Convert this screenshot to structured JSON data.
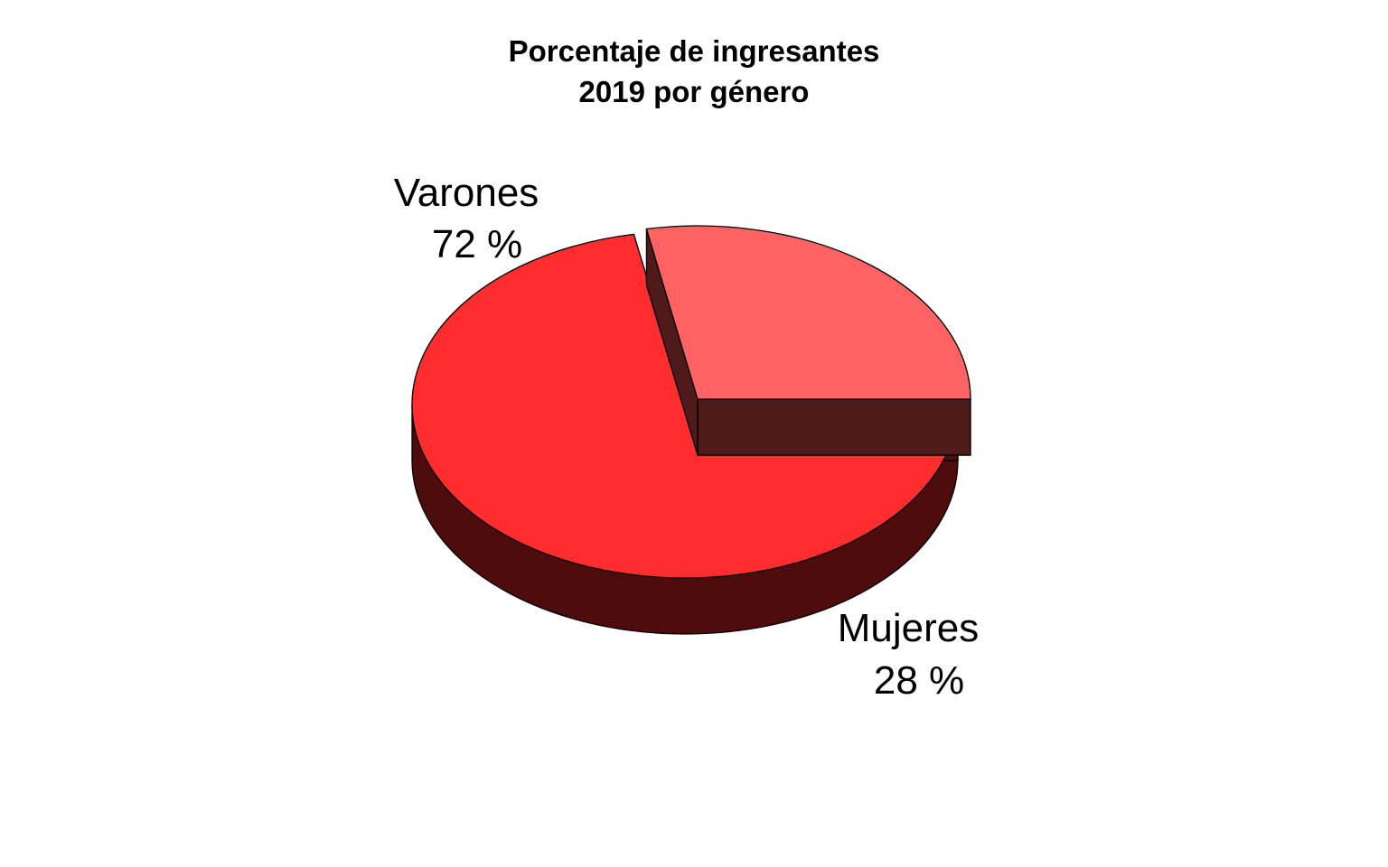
{
  "chart_data": {
    "type": "pie",
    "title": [
      "Porcentaje de ingresantes",
      "2019 por género"
    ],
    "style": "3d-exploded",
    "slices": [
      {
        "label": "Varones",
        "value": 72,
        "value_label": "72 %",
        "color": "#ff2d2d",
        "side_color": "#4e0c0c"
      },
      {
        "label": "Mujeres",
        "value": 28,
        "value_label": "28 %",
        "color": "#ff6262",
        "side_color": "#4e1a1a"
      }
    ]
  }
}
